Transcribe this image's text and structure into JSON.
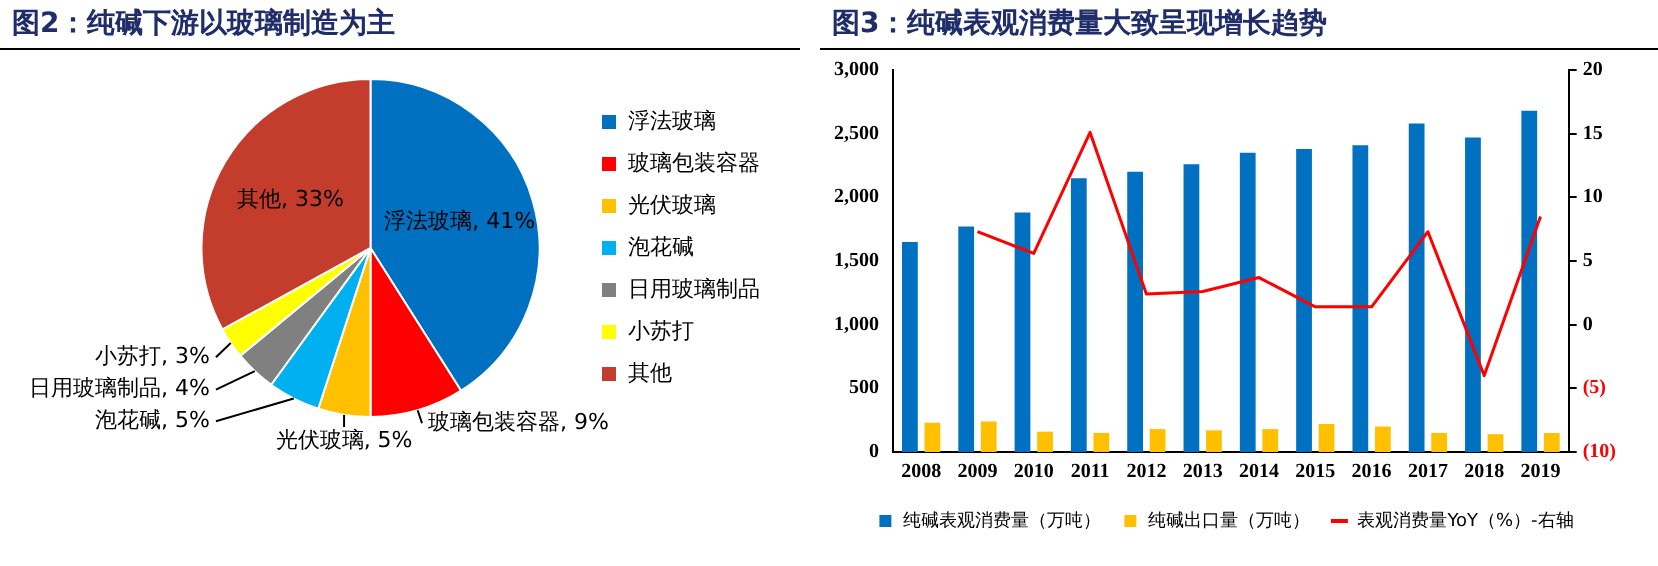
{
  "chart_data": [
    {
      "type": "pie",
      "title": "图2：纯碱下游以玻璃制造为主",
      "categories": [
        "浮法玻璃",
        "玻璃包装容器",
        "光伏玻璃",
        "泡花碱",
        "日用玻璃制品",
        "小苏打",
        "其他"
      ],
      "values": [
        41,
        9,
        5,
        5,
        4,
        3,
        33
      ],
      "colors": [
        "#0070c0",
        "#ff0000",
        "#ffc000",
        "#00b0f0",
        "#808080",
        "#ffff00",
        "#c43c2c"
      ],
      "value_labels": [
        "浮法玻璃, 41%",
        "玻璃包装容器, 9%",
        "光伏玻璃, 5%",
        "泡花碱, 5%",
        "日用玻璃制品, 4%",
        "小苏打, 3%",
        "其他, 33%"
      ],
      "legend": "right"
    },
    {
      "type": "bar",
      "title": "图3：纯碱表观消费量大致呈现增长趋势",
      "categories": [
        "2008",
        "2009",
        "2010",
        "2011",
        "2012",
        "2013",
        "2014",
        "2015",
        "2016",
        "2017",
        "2018",
        "2019"
      ],
      "series": [
        {
          "name": "纯碱表观消费量（万吨）",
          "color": "#0070c0",
          "values": [
            1650,
            1770,
            1880,
            2150,
            2200,
            2260,
            2350,
            2380,
            2410,
            2580,
            2470,
            2680
          ]
        },
        {
          "name": "纯碱出口量（万吨）",
          "color": "#ffc000",
          "values": [
            230,
            240,
            160,
            150,
            180,
            170,
            180,
            220,
            200,
            150,
            140,
            150
          ]
        },
        {
          "name": "表观消费量YoY（%）-右轴",
          "type": "line",
          "axis": "y2",
          "color": "#ff0000",
          "values": [
            null,
            7.3,
            5.6,
            15.1,
            2.4,
            2.6,
            3.7,
            1.4,
            1.4,
            7.3,
            -4.0,
            8.5
          ]
        }
      ],
      "ylim": [
        0,
        3000
      ],
      "yticks": [
        0,
        500,
        {
          "value": 1000,
          "label": "1,000"
        },
        {
          "value": 1500,
          "label": "1,500"
        },
        {
          "value": 2000,
          "label": "2,000"
        },
        {
          "value": 2500,
          "label": "2,500"
        },
        {
          "value": 3000,
          "label": "3,000"
        }
      ],
      "y2lim": [
        -10,
        20
      ],
      "y2ticks": [
        {
          "value": -10,
          "label": "(10)"
        },
        {
          "value": -5,
          "label": "(5)"
        },
        0,
        5,
        10,
        15,
        20
      ],
      "marker": "none",
      "grid": false,
      "legend": "bottom"
    }
  ]
}
